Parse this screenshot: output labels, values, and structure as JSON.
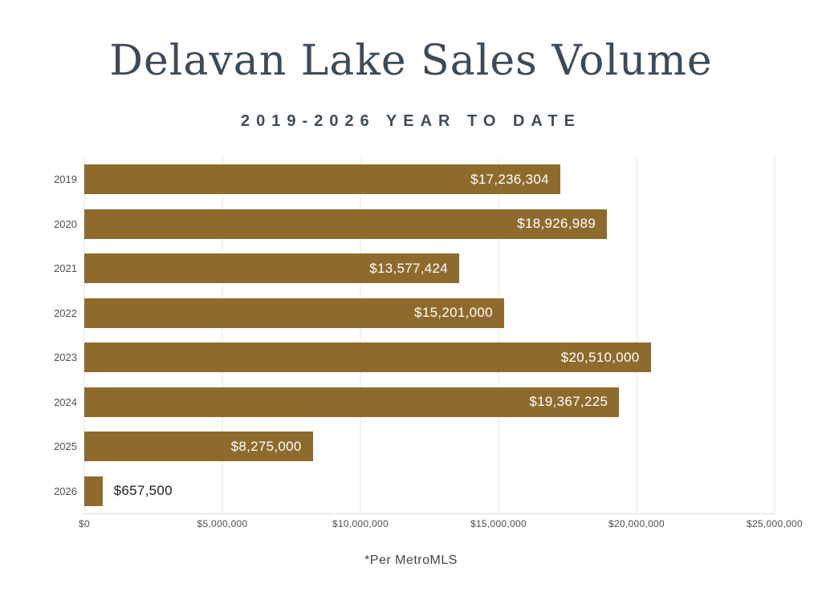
{
  "title": "Delavan Lake Sales Volume",
  "subtitle": "2019-2026 YEAR TO DATE",
  "footnote": "*Per MetroMLS",
  "colors": {
    "bar": "#8e6b2d",
    "title": "#3d4a57",
    "gridline": "#e5e5e5",
    "value_label_inside": "#ffffff",
    "value_label_outside": "#1c1c1c"
  },
  "chart_data": {
    "type": "bar",
    "orientation": "horizontal",
    "title": "Delavan Lake Sales Volume",
    "subtitle": "2019-2026 YEAR TO DATE",
    "xlabel": "",
    "ylabel": "",
    "categories": [
      "2019",
      "2020",
      "2021",
      "2022",
      "2023",
      "2024",
      "2025",
      "2026"
    ],
    "values": [
      17236304,
      18926989,
      13577424,
      15201000,
      20510000,
      19367225,
      8275000,
      657500
    ],
    "value_labels": [
      "$17,236,304",
      "$18,926,989",
      "$13,577,424",
      "$15,201,000",
      "$20,510,000",
      "$19,367,225",
      "$8,275,000",
      "$657,500"
    ],
    "xlim": [
      0,
      25000000
    ],
    "x_ticks": [
      "$0",
      "$5,000,000",
      "$10,000,000",
      "$15,000,000",
      "$20,000,000",
      "$25,000,000"
    ],
    "grid": true,
    "legend": "none",
    "annotation": "*Per MetroMLS"
  }
}
